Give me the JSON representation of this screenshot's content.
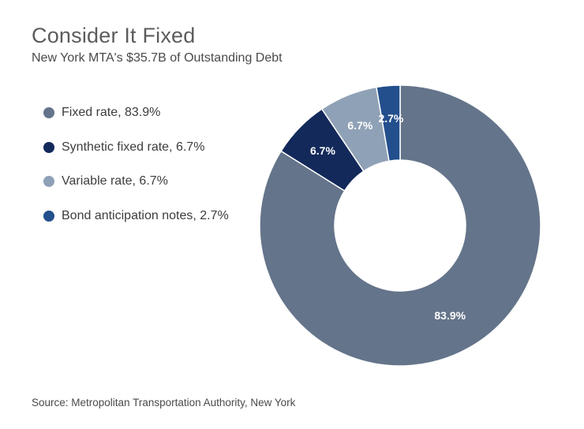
{
  "header": {
    "title": "Consider It Fixed",
    "subtitle": "New York MTA's $35.7B of Outstanding Debt"
  },
  "legend": {
    "items": [
      {
        "label": "Fixed rate, 83.9%",
        "color": "#64748a"
      },
      {
        "label": "Synthetic fixed rate, 6.7%",
        "color": "#13295a"
      },
      {
        "label": "Variable rate, 6.7%",
        "color": "#8fa1b6"
      },
      {
        "label": "Bond anticipation notes, 2.7%",
        "color": "#234f8d"
      }
    ]
  },
  "chart_data": {
    "type": "pie",
    "donut": true,
    "title": "Consider It Fixed",
    "subtitle": "New York MTA's $35.7B of Outstanding Debt",
    "categories": [
      "Fixed rate",
      "Synthetic fixed rate",
      "Variable rate",
      "Bond anticipation notes"
    ],
    "values": [
      83.9,
      6.7,
      6.7,
      2.7
    ],
    "data_labels": [
      "83.9%",
      "6.7%",
      "6.7%",
      "2.7%"
    ],
    "colors": [
      "#64748a",
      "#13295a",
      "#8fa1b6",
      "#234f8d"
    ],
    "legend_position": "left"
  },
  "footer": {
    "source": "Source: Metropolitan Transportation Authority, New York"
  }
}
